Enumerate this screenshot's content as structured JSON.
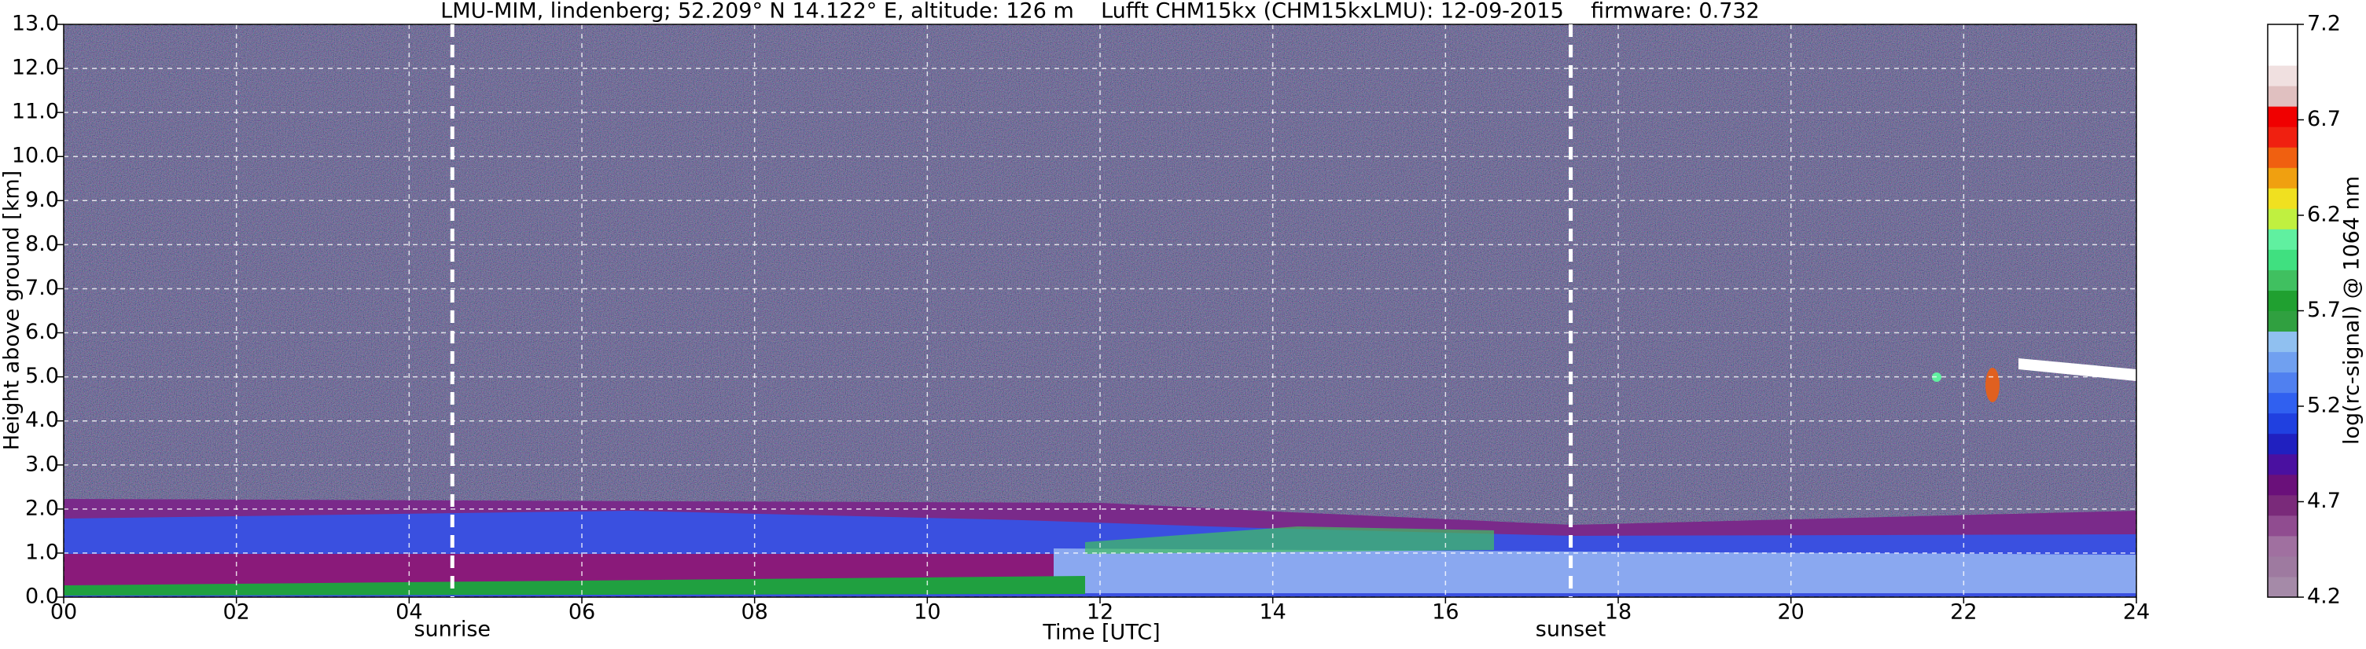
{
  "chart_data": {
    "type": "heatmap",
    "title": "LMU-MIM, lindenberg; 52.209° N 14.122° E, altitude: 126 m    Lufft CHM15kx (CHM15kxLMU): 12-09-2015    firmware: 0.732",
    "x_label": "Time [UTC]",
    "y_label": "Height above ground [km]",
    "xlim": [
      0,
      24
    ],
    "xticks": [
      {
        "value": 0,
        "label": "00"
      },
      {
        "value": 2,
        "label": "02"
      },
      {
        "value": 4,
        "label": "04"
      },
      {
        "value": 6,
        "label": "06"
      },
      {
        "value": 8,
        "label": "08"
      },
      10,
      12,
      14,
      16,
      18,
      20,
      22,
      24
    ],
    "ylim": [
      0,
      13
    ],
    "yticks": [
      {
        "value": 0,
        "label": "0.0"
      },
      {
        "value": 1,
        "label": "1.0"
      },
      {
        "value": 2,
        "label": "2.0"
      },
      {
        "value": 3,
        "label": "3.0"
      },
      {
        "value": 4,
        "label": "4.0"
      },
      {
        "value": 5,
        "label": "5.0"
      },
      {
        "value": 6,
        "label": "6.0"
      },
      {
        "value": 7,
        "label": "7.0"
      },
      {
        "value": 8,
        "label": "8.0"
      },
      {
        "value": 9,
        "label": "9.0"
      },
      {
        "value": 10,
        "label": "10.0"
      },
      {
        "value": 11,
        "label": "11.0"
      },
      {
        "value": 12,
        "label": "12.0"
      },
      {
        "value": 13,
        "label": "13.0"
      }
    ],
    "grid": true,
    "annotations": [
      {
        "text": "sunrise",
        "x": 4.5
      },
      {
        "text": "sunset",
        "x": 17.45
      }
    ],
    "colorbar": {
      "label": "log(rc-signal) @ 1064 nm",
      "lim": [
        4.2,
        7.2
      ],
      "ticks": [
        4.2,
        4.7,
        5.2,
        5.7,
        6.2,
        6.7,
        7.2
      ],
      "colormap": [
        "#a58aa8",
        "#9e7aa0",
        "#a070a0",
        "#904c90",
        "#7a2a7a",
        "#6a107a",
        "#4a10a0",
        "#2020c0",
        "#2040e0",
        "#3060f0",
        "#5080f0",
        "#70a0f0",
        "#90c0f0",
        "#30a040",
        "#20a030",
        "#40c060",
        "#40e080",
        "#60f0a0",
        "#c0f040",
        "#f0e020",
        "#f0a010",
        "#f06010",
        "#f02010",
        "#f00000",
        "#e0c0c0",
        "#f0e0e0",
        "#ffffff",
        "#ffffff"
      ]
    }
  }
}
